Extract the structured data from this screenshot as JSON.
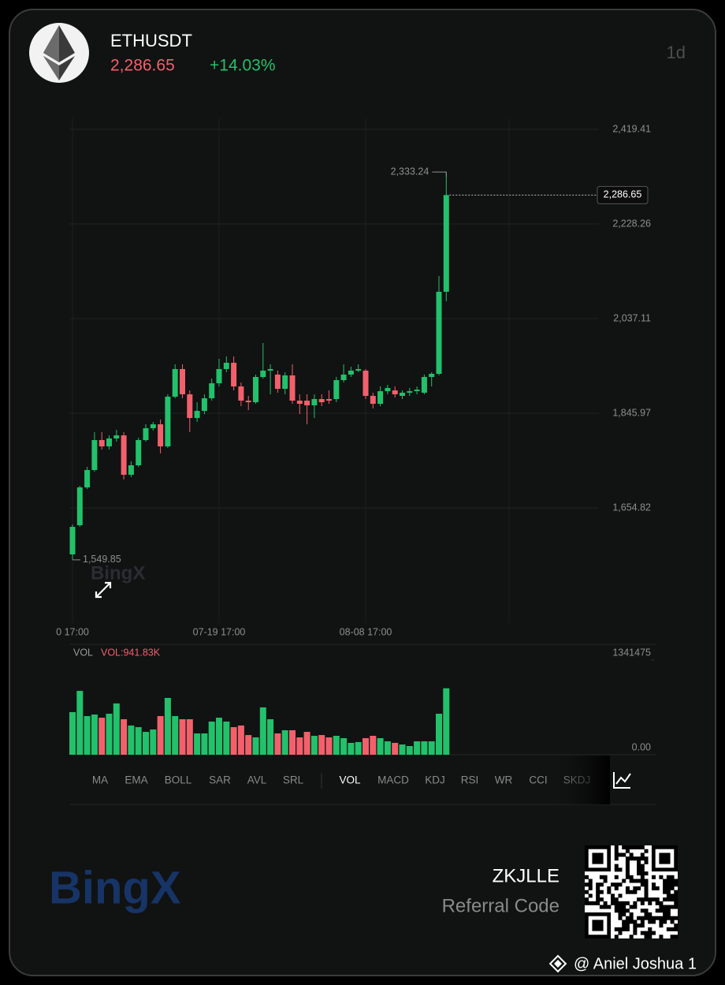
{
  "header": {
    "symbol": "ETHUSDT",
    "price": "2,286.65",
    "change": "+14.03%",
    "interval": "1d"
  },
  "chart_data": [
    {
      "type": "candlestick",
      "categories": [
        "0 17:00",
        null,
        null,
        null,
        null,
        null,
        null,
        null,
        null,
        null,
        null,
        null,
        null,
        null,
        null,
        null,
        null,
        null,
        null,
        null,
        "07-19 17:00",
        null,
        null,
        null,
        null,
        null,
        null,
        null,
        null,
        null,
        null,
        null,
        null,
        null,
        null,
        null,
        null,
        null,
        null,
        null,
        "08-08 17:00",
        null,
        null,
        null,
        null,
        null,
        null,
        null,
        null,
        null,
        null,
        null
      ],
      "open": [
        1560.8,
        1619.7,
        1696.2,
        1731.3,
        1791.8,
        1779.0,
        1795.0,
        1801.3,
        1721.7,
        1740.8,
        1791.8,
        1815.7,
        1823.6,
        1779.0,
        1879.4,
        1935.2,
        1884.2,
        1836.4,
        1850.7,
        1876.2,
        1906.5,
        1935.2,
        1947.9,
        1900.1,
        1871.4,
        1868.2,
        1919.2,
        1932.0,
        1924.0,
        1895.3,
        1922.4,
        1871.4,
        1871.4,
        1861.9,
        1874.6,
        1874.6,
        1874.6,
        1912.8,
        1924.0,
        1932.0,
        1932.0,
        1881.0,
        1865.0,
        1890.5,
        1892.1,
        1881.0,
        1887.4,
        1890.5,
        1887.4,
        1919.2,
        1925.6,
        2091.3
      ],
      "high": [
        1621.3,
        1699.4,
        1737.6,
        1807.7,
        1807.7,
        1801.3,
        1812.5,
        1807.7,
        1748.8,
        1796.5,
        1823.6,
        1828.4,
        1833.2,
        1884.2,
        1944.7,
        1944.7,
        1892.1,
        1868.2,
        1884.2,
        1916.0,
        1955.9,
        1960.7,
        1960.7,
        1908.1,
        1881.0,
        1924.0,
        1987.7,
        1944.7,
        1932.0,
        1928.8,
        1944.7,
        1884.2,
        1884.2,
        1884.2,
        1884.2,
        1892.1,
        1919.2,
        1944.7,
        1939.9,
        1944.7,
        1935.2,
        1887.4,
        1900.1,
        1903.3,
        1900.1,
        1892.1,
        1896.9,
        1900.1,
        1924.0,
        1928.8,
        2123.1,
        2333.24
      ],
      "low": [
        1549.85,
        1616.5,
        1693.0,
        1728.1,
        1772.7,
        1772.7,
        1788.6,
        1712.2,
        1716.9,
        1737.6,
        1788.6,
        1810.9,
        1764.7,
        1775.9,
        1876.2,
        1876.2,
        1807.7,
        1828.4,
        1844.3,
        1871.4,
        1900.1,
        1928.8,
        1892.1,
        1860.3,
        1852.3,
        1865.0,
        1916.0,
        1884.2,
        1887.4,
        1884.2,
        1865.0,
        1844.3,
        1823.6,
        1836.4,
        1860.3,
        1865.0,
        1868.2,
        1908.1,
        1919.2,
        1928.8,
        1874.6,
        1855.5,
        1860.3,
        1884.2,
        1877.8,
        1874.6,
        1881.0,
        1884.2,
        1884.2,
        1900.1,
        1922.4,
        2072.2
      ],
      "close": [
        1616.5,
        1696.2,
        1731.3,
        1791.8,
        1779.0,
        1795.0,
        1801.3,
        1721.7,
        1740.8,
        1791.8,
        1815.7,
        1823.6,
        1779.0,
        1879.4,
        1935.2,
        1884.2,
        1836.4,
        1850.7,
        1876.2,
        1906.5,
        1935.2,
        1947.9,
        1900.1,
        1871.4,
        1868.2,
        1919.2,
        1932.0,
        1935.2,
        1895.3,
        1922.4,
        1871.4,
        1865.0,
        1861.9,
        1874.6,
        1868.2,
        1871.4,
        1912.8,
        1924.0,
        1932.0,
        1935.2,
        1881.0,
        1865.0,
        1890.5,
        1896.9,
        1884.2,
        1887.4,
        1890.5,
        1893.7,
        1919.2,
        1925.6,
        2091.3,
        2286.65
      ],
      "high_label": "2,333.24",
      "low_label": "1,549.85",
      "up_color": "#22c16b",
      "down_color": "#f2606c",
      "ylim": [
        1454.1,
        2441.7
      ],
      "yticks": [
        {
          "value": 1654.82,
          "label": "1,654.82"
        },
        {
          "value": 1845.97,
          "label": "1,845.97"
        },
        {
          "value": 2037.11,
          "label": "2,037.11"
        },
        {
          "value": 2228.26,
          "label": "2,228.26"
        },
        {
          "value": 2419.41,
          "label": "2,419.41"
        }
      ],
      "grid": true
    },
    {
      "type": "bar",
      "title": "VOL",
      "subtitle": "VOL:941.83K",
      "values": [
        604000,
        905000,
        548000,
        570000,
        525000,
        581000,
        727000,
        503000,
        414000,
        391000,
        324000,
        358000,
        548000,
        805000,
        548000,
        503000,
        503000,
        302000,
        302000,
        470000,
        525000,
        470000,
        391000,
        414000,
        279000,
        246000,
        671000,
        503000,
        302000,
        347000,
        347000,
        246000,
        324000,
        268000,
        279000,
        246000,
        268000,
        235000,
        168000,
        179000,
        235000,
        268000,
        235000,
        190000,
        168000,
        145000,
        123000,
        190000,
        190000,
        190000,
        581000,
        941830
      ],
      "ylim": [
        0,
        1341475
      ],
      "yticks": [
        {
          "value": 0,
          "label": "0.00"
        },
        1341475
      ]
    }
  ],
  "indicators": {
    "main": [
      "MA",
      "EMA",
      "BOLL",
      "SAR",
      "AVL",
      "SRL"
    ],
    "sub": [
      "VOL",
      "MACD",
      "KDJ",
      "RSI",
      "WR",
      "CCI",
      "SKDJ"
    ],
    "active": "VOL"
  },
  "footer": {
    "code": "ZKJLLE",
    "code_label": "Referral Code",
    "brand": "BingX",
    "watermark": "@ Aniel Joshua 1"
  }
}
